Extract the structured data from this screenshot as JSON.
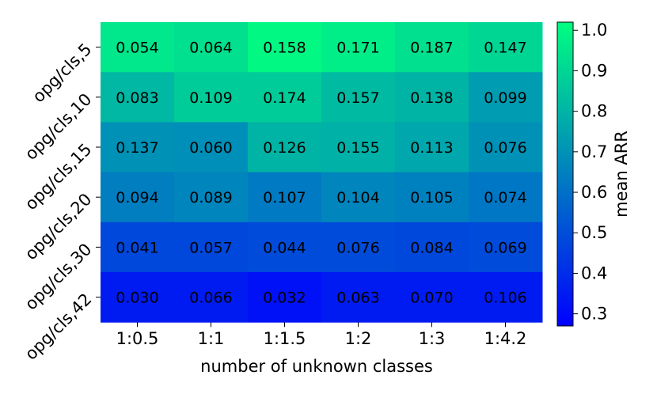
{
  "chart_data": {
    "type": "heatmap",
    "title": "",
    "xlabel": "number of unknown classes",
    "ylabel": "",
    "x_categories": [
      "1:0.5",
      "1:1",
      "1:1.5",
      "1:2",
      "1:3",
      "1:4.2"
    ],
    "y_categories": [
      "opg/cls,5",
      "opg/cls,10",
      "opg/cls,15",
      "opg/cls,20",
      "opg/cls,30",
      "opg/cls,42"
    ],
    "annotations": [
      [
        "0.054",
        "0.064",
        "0.158",
        "0.171",
        "0.187",
        "0.147"
      ],
      [
        "0.083",
        "0.109",
        "0.174",
        "0.157",
        "0.138",
        "0.099"
      ],
      [
        "0.137",
        "0.060",
        "0.126",
        "0.155",
        "0.113",
        "0.076"
      ],
      [
        "0.094",
        "0.089",
        "0.107",
        "0.104",
        "0.105",
        "0.074"
      ],
      [
        "0.041",
        "0.057",
        "0.044",
        "0.076",
        "0.084",
        "0.069"
      ],
      [
        "0.030",
        "0.066",
        "0.032",
        "0.063",
        "0.070",
        "0.106"
      ]
    ],
    "values": [
      [
        0.95,
        0.93,
        1.0,
        0.97,
        0.93,
        0.9
      ],
      [
        0.81,
        0.87,
        0.87,
        0.82,
        0.8,
        0.73
      ],
      [
        0.7,
        0.69,
        0.8,
        0.79,
        0.76,
        0.7
      ],
      [
        0.64,
        0.66,
        0.63,
        0.66,
        0.65,
        0.62
      ],
      [
        0.48,
        0.48,
        0.49,
        0.49,
        0.48,
        0.49
      ],
      [
        0.35,
        0.35,
        0.32,
        0.35,
        0.35,
        0.35
      ]
    ],
    "colorbar": {
      "label": "mean ARR",
      "vmin": 0.27,
      "vmax": 1.02,
      "ticks": [
        "0.3",
        "0.4",
        "0.5",
        "0.6",
        "0.7",
        "0.8",
        "0.9",
        "1.0"
      ],
      "colormap_low": "#0000ff",
      "colormap_high": "#00ff80"
    },
    "grid": false
  }
}
